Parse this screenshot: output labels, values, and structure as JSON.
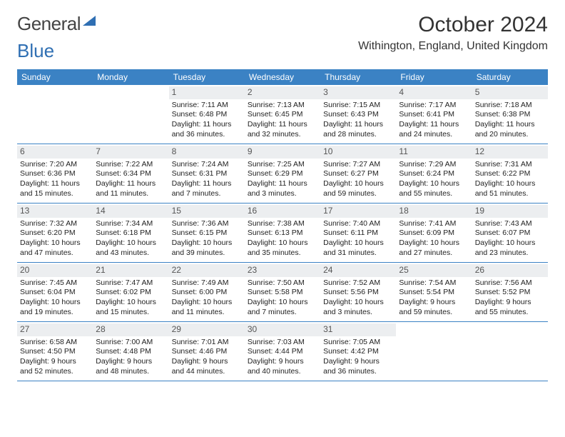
{
  "logo": {
    "left": "General",
    "right": "Blue"
  },
  "title": "October 2024",
  "location": "Withington, England, United Kingdom",
  "colors": {
    "header_bg": "#3b82c4",
    "header_text": "#ffffff",
    "daynum_bg": "#eceef0",
    "rule": "#3b82c4",
    "logo_blue": "#2f6fb3"
  },
  "weekdays": [
    "Sunday",
    "Monday",
    "Tuesday",
    "Wednesday",
    "Thursday",
    "Friday",
    "Saturday"
  ],
  "weeks": [
    [
      null,
      null,
      {
        "n": "1",
        "sunrise": "7:11 AM",
        "sunset": "6:48 PM",
        "dl_h": 11,
        "dl_m": 36
      },
      {
        "n": "2",
        "sunrise": "7:13 AM",
        "sunset": "6:45 PM",
        "dl_h": 11,
        "dl_m": 32
      },
      {
        "n": "3",
        "sunrise": "7:15 AM",
        "sunset": "6:43 PM",
        "dl_h": 11,
        "dl_m": 28
      },
      {
        "n": "4",
        "sunrise": "7:17 AM",
        "sunset": "6:41 PM",
        "dl_h": 11,
        "dl_m": 24
      },
      {
        "n": "5",
        "sunrise": "7:18 AM",
        "sunset": "6:38 PM",
        "dl_h": 11,
        "dl_m": 20
      }
    ],
    [
      {
        "n": "6",
        "sunrise": "7:20 AM",
        "sunset": "6:36 PM",
        "dl_h": 11,
        "dl_m": 15
      },
      {
        "n": "7",
        "sunrise": "7:22 AM",
        "sunset": "6:34 PM",
        "dl_h": 11,
        "dl_m": 11
      },
      {
        "n": "8",
        "sunrise": "7:24 AM",
        "sunset": "6:31 PM",
        "dl_h": 11,
        "dl_m": 7
      },
      {
        "n": "9",
        "sunrise": "7:25 AM",
        "sunset": "6:29 PM",
        "dl_h": 11,
        "dl_m": 3
      },
      {
        "n": "10",
        "sunrise": "7:27 AM",
        "sunset": "6:27 PM",
        "dl_h": 10,
        "dl_m": 59
      },
      {
        "n": "11",
        "sunrise": "7:29 AM",
        "sunset": "6:24 PM",
        "dl_h": 10,
        "dl_m": 55
      },
      {
        "n": "12",
        "sunrise": "7:31 AM",
        "sunset": "6:22 PM",
        "dl_h": 10,
        "dl_m": 51
      }
    ],
    [
      {
        "n": "13",
        "sunrise": "7:32 AM",
        "sunset": "6:20 PM",
        "dl_h": 10,
        "dl_m": 47
      },
      {
        "n": "14",
        "sunrise": "7:34 AM",
        "sunset": "6:18 PM",
        "dl_h": 10,
        "dl_m": 43
      },
      {
        "n": "15",
        "sunrise": "7:36 AM",
        "sunset": "6:15 PM",
        "dl_h": 10,
        "dl_m": 39
      },
      {
        "n": "16",
        "sunrise": "7:38 AM",
        "sunset": "6:13 PM",
        "dl_h": 10,
        "dl_m": 35
      },
      {
        "n": "17",
        "sunrise": "7:40 AM",
        "sunset": "6:11 PM",
        "dl_h": 10,
        "dl_m": 31
      },
      {
        "n": "18",
        "sunrise": "7:41 AM",
        "sunset": "6:09 PM",
        "dl_h": 10,
        "dl_m": 27
      },
      {
        "n": "19",
        "sunrise": "7:43 AM",
        "sunset": "6:07 PM",
        "dl_h": 10,
        "dl_m": 23
      }
    ],
    [
      {
        "n": "20",
        "sunrise": "7:45 AM",
        "sunset": "6:04 PM",
        "dl_h": 10,
        "dl_m": 19
      },
      {
        "n": "21",
        "sunrise": "7:47 AM",
        "sunset": "6:02 PM",
        "dl_h": 10,
        "dl_m": 15
      },
      {
        "n": "22",
        "sunrise": "7:49 AM",
        "sunset": "6:00 PM",
        "dl_h": 10,
        "dl_m": 11
      },
      {
        "n": "23",
        "sunrise": "7:50 AM",
        "sunset": "5:58 PM",
        "dl_h": 10,
        "dl_m": 7
      },
      {
        "n": "24",
        "sunrise": "7:52 AM",
        "sunset": "5:56 PM",
        "dl_h": 10,
        "dl_m": 3
      },
      {
        "n": "25",
        "sunrise": "7:54 AM",
        "sunset": "5:54 PM",
        "dl_h": 9,
        "dl_m": 59
      },
      {
        "n": "26",
        "sunrise": "7:56 AM",
        "sunset": "5:52 PM",
        "dl_h": 9,
        "dl_m": 55
      }
    ],
    [
      {
        "n": "27",
        "sunrise": "6:58 AM",
        "sunset": "4:50 PM",
        "dl_h": 9,
        "dl_m": 52
      },
      {
        "n": "28",
        "sunrise": "7:00 AM",
        "sunset": "4:48 PM",
        "dl_h": 9,
        "dl_m": 48
      },
      {
        "n": "29",
        "sunrise": "7:01 AM",
        "sunset": "4:46 PM",
        "dl_h": 9,
        "dl_m": 44
      },
      {
        "n": "30",
        "sunrise": "7:03 AM",
        "sunset": "4:44 PM",
        "dl_h": 9,
        "dl_m": 40
      },
      {
        "n": "31",
        "sunrise": "7:05 AM",
        "sunset": "4:42 PM",
        "dl_h": 9,
        "dl_m": 36
      },
      null,
      null
    ]
  ]
}
